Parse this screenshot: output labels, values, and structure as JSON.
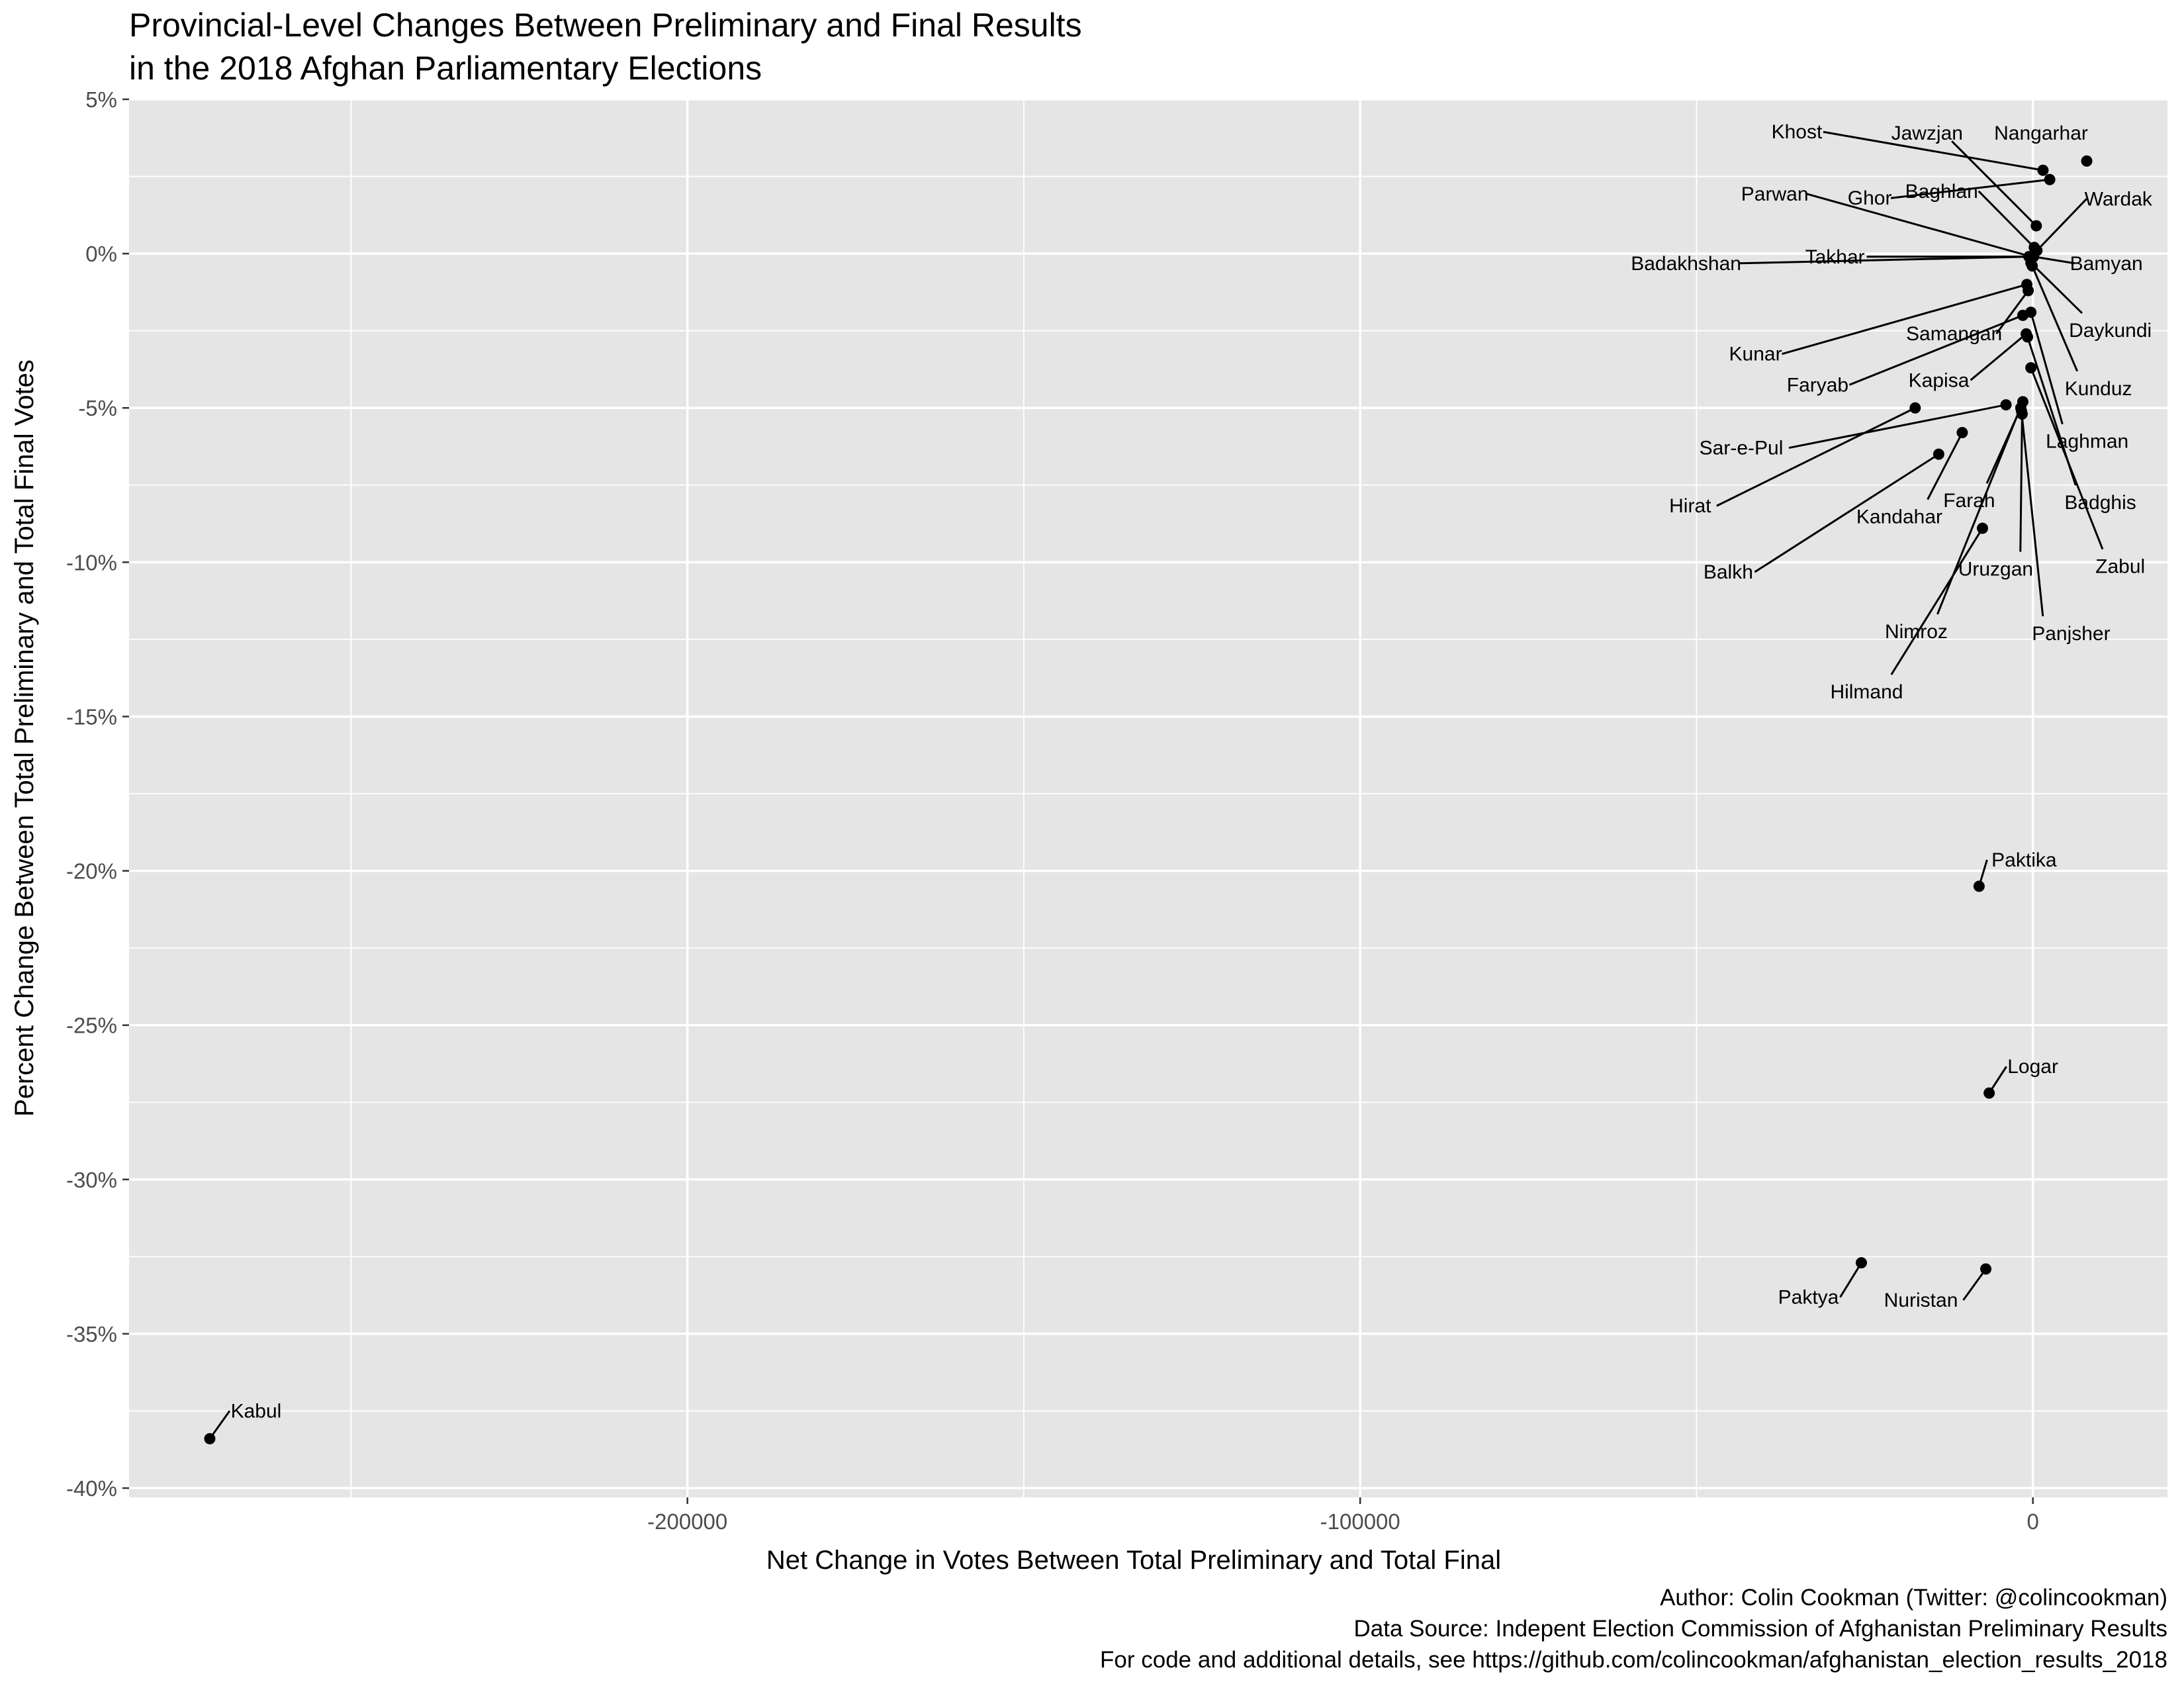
{
  "chart_data": {
    "type": "scatter",
    "title": "Provincial-Level Changes Between Preliminary and Final Results",
    "subtitle": "in the 2018 Afghan Parliamentary Elections",
    "xlabel": "Net Change in Votes Between Total Preliminary and Total Final",
    "ylabel": "Percent Change Between Total Preliminary and Total Final Votes",
    "xlim": [
      -283000,
      20000
    ],
    "ylim": [
      -40.3,
      5.0
    ],
    "x_ticks": [
      -200000,
      -100000,
      0
    ],
    "x_tick_labels": [
      "-200000",
      "-100000",
      "0"
    ],
    "y_ticks": [
      5,
      0,
      -5,
      -10,
      -15,
      -20,
      -25,
      -30,
      -35,
      -40
    ],
    "y_tick_labels": [
      "5%",
      "0%",
      "-5%",
      "-10%",
      "-15%",
      "-20%",
      "-25%",
      "-30%",
      "-35%",
      "-40%"
    ],
    "grid": true,
    "points": [
      {
        "label": "Kabul",
        "x": -271000,
        "y": -38.4
      },
      {
        "label": "Nangarhar",
        "x": 8000,
        "y": 3.0
      },
      {
        "label": "Khost",
        "x": 1500,
        "y": 2.7
      },
      {
        "label": "Ghor",
        "x": 2500,
        "y": 2.4
      },
      {
        "label": "Jawzjan",
        "x": 500,
        "y": 0.9
      },
      {
        "label": "Baghlan",
        "x": 200,
        "y": 0.2
      },
      {
        "label": "Wardak",
        "x": 600,
        "y": 0.1
      },
      {
        "label": "Parwan",
        "x": -200,
        "y": -0.1
      },
      {
        "label": "Bamyan",
        "x": 100,
        "y": -0.1
      },
      {
        "label": "Takhar",
        "x": -400,
        "y": -0.1
      },
      {
        "label": "Badakhshan",
        "x": -600,
        "y": -0.1
      },
      {
        "label": "Daykundi",
        "x": -300,
        "y": -0.3
      },
      {
        "label": "Kunduz",
        "x": -100,
        "y": -0.4
      },
      {
        "label": "Kunar",
        "x": -900,
        "y": -1.0
      },
      {
        "label": "Samangan",
        "x": -700,
        "y": -1.2
      },
      {
        "label": "Laghman",
        "x": -300,
        "y": -1.9
      },
      {
        "label": "Faryab",
        "x": -1500,
        "y": -2.0
      },
      {
        "label": "Kapisa",
        "x": -1000,
        "y": -2.6
      },
      {
        "label": "Badghis",
        "x": -800,
        "y": -2.7
      },
      {
        "label": "Zabul",
        "x": -300,
        "y": -3.7
      },
      {
        "label": "Sar-e-Pul",
        "x": -4000,
        "y": -4.9
      },
      {
        "label": "Farah",
        "x": -1800,
        "y": -5.0
      },
      {
        "label": "Uruzgan",
        "x": -1600,
        "y": -5.2
      },
      {
        "label": "Panjsher",
        "x": -1700,
        "y": -5.1
      },
      {
        "label": "Hirat",
        "x": -17500,
        "y": -5.0
      },
      {
        "label": "Kandahar",
        "x": -10500,
        "y": -5.8
      },
      {
        "label": "Balkh",
        "x": -14000,
        "y": -6.5
      },
      {
        "label": "Nimroz",
        "x": -1500,
        "y": -4.8
      },
      {
        "label": "Hilmand",
        "x": -7500,
        "y": -8.9
      },
      {
        "label": "Paktika",
        "x": -8000,
        "y": -20.5
      },
      {
        "label": "Logar",
        "x": -6500,
        "y": -27.2
      },
      {
        "label": "Nuristan",
        "x": -7000,
        "y": -32.9
      },
      {
        "label": "Paktya",
        "x": -25500,
        "y": -32.7
      }
    ],
    "captions": [
      "Author: Colin Cookman (Twitter: @colincookman)",
      "Data Source: Indepent Election Commission of Afghanistan Preliminary Results",
      "For code and additional details, see https://github.com/colincookman/afghanistan_election_results_2018"
    ]
  }
}
